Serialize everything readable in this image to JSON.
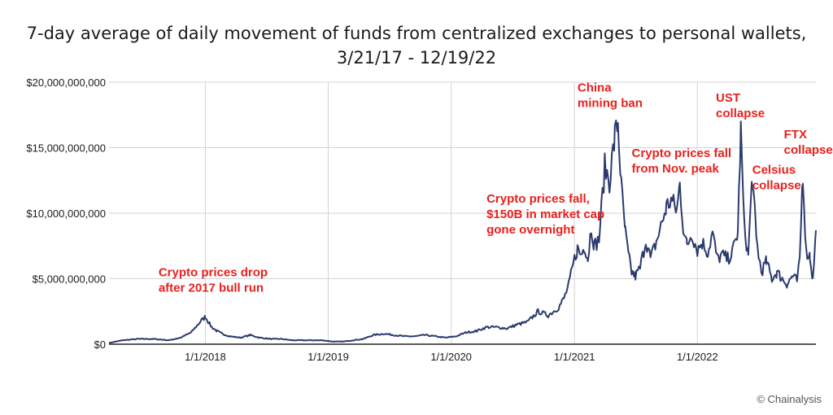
{
  "credit": "© Chainalysis",
  "chart_data": {
    "type": "line",
    "title": "7-day average of daily movement of funds from centralized exchanges to personal wallets, 3/21/17 - 12/19/22",
    "xlabel": "",
    "ylabel": "",
    "xlim": [
      "2017-03-21",
      "2022-12-19"
    ],
    "ylim": [
      0,
      20000000000
    ],
    "yticks": [
      0,
      5000000000,
      10000000000,
      15000000000,
      20000000000
    ],
    "ytick_labels": [
      "$0",
      "$5,000,000,000",
      "$10,000,000,000",
      "$15,000,000,000",
      "$20,000,000,000"
    ],
    "xticks": [
      "2018-01-01",
      "2019-01-01",
      "2020-01-01",
      "2021-01-01",
      "2022-01-01"
    ],
    "xtick_labels": [
      "1/1/2018",
      "1/1/2019",
      "1/1/2020",
      "1/1/2021",
      "1/1/2022"
    ],
    "grid": true,
    "line_color": "#2b3a6e",
    "annotation_color": "#e8201d",
    "series": [
      {
        "x": [
          "2017-03-21",
          "2017-05-01",
          "2017-06-15",
          "2017-08-01",
          "2017-09-15",
          "2017-10-20",
          "2017-11-20",
          "2017-12-10",
          "2017-12-20",
          "2018-01-01",
          "2018-01-10",
          "2018-01-20",
          "2018-02-05",
          "2018-02-20",
          "2018-03-15",
          "2018-04-15",
          "2018-05-15",
          "2018-06-10",
          "2018-07-15",
          "2018-08-15",
          "2018-09-15",
          "2018-10-15",
          "2018-11-15",
          "2018-12-15",
          "2019-01-15",
          "2019-02-15",
          "2019-03-15",
          "2019-04-15",
          "2019-05-15",
          "2019-06-15",
          "2019-07-15",
          "2019-08-15",
          "2019-09-15",
          "2019-10-15",
          "2019-11-15",
          "2019-12-15",
          "2020-01-15",
          "2020-02-15",
          "2020-03-15",
          "2020-04-15",
          "2020-05-15",
          "2020-06-15",
          "2020-07-15",
          "2020-08-15",
          "2020-09-15",
          "2020-10-15",
          "2020-11-15",
          "2020-12-01",
          "2020-12-15",
          "2021-01-01",
          "2021-01-10",
          "2021-01-20",
          "2021-02-01",
          "2021-02-10",
          "2021-02-20",
          "2021-03-01",
          "2021-03-15",
          "2021-04-01",
          "2021-04-15",
          "2021-05-01",
          "2021-05-10",
          "2021-05-20",
          "2021-06-01",
          "2021-06-10",
          "2021-06-20",
          "2021-07-01",
          "2021-07-15",
          "2021-08-01",
          "2021-08-15",
          "2021-09-01",
          "2021-09-15",
          "2021-10-01",
          "2021-10-15",
          "2021-11-01",
          "2021-11-10",
          "2021-11-20",
          "2021-12-01",
          "2021-12-15",
          "2022-01-01",
          "2022-01-15",
          "2022-02-01",
          "2022-02-15",
          "2022-03-01",
          "2022-03-15",
          "2022-04-01",
          "2022-04-15",
          "2022-05-01",
          "2022-05-10",
          "2022-05-20",
          "2022-06-01",
          "2022-06-13",
          "2022-06-25",
          "2022-07-10",
          "2022-07-25",
          "2022-08-10",
          "2022-08-25",
          "2022-09-10",
          "2022-09-25",
          "2022-10-10",
          "2022-10-25",
          "2022-11-01",
          "2022-11-10",
          "2022-11-20",
          "2022-12-01",
          "2022-12-10",
          "2022-12-19"
        ],
        "y": [
          100000000,
          300000000,
          400000000,
          400000000,
          300000000,
          500000000,
          900000000,
          1500000000,
          1800000000,
          2100000000,
          1700000000,
          1300000000,
          1000000000,
          800000000,
          600000000,
          500000000,
          700000000,
          500000000,
          400000000,
          400000000,
          300000000,
          300000000,
          300000000,
          300000000,
          200000000,
          200000000,
          300000000,
          400000000,
          700000000,
          800000000,
          700000000,
          600000000,
          600000000,
          700000000,
          600000000,
          500000000,
          600000000,
          900000000,
          1000000000,
          1300000000,
          1300000000,
          1200000000,
          1500000000,
          1700000000,
          2500000000,
          2200000000,
          2800000000,
          3500000000,
          4500000000,
          6500000000,
          7300000000,
          6800000000,
          7500000000,
          6500000000,
          9000000000,
          7500000000,
          8000000000,
          13500000000,
          12500000000,
          15800000000,
          17000000000,
          12000000000,
          8500000000,
          6800000000,
          5500000000,
          5200000000,
          5800000000,
          8000000000,
          6500000000,
          7800000000,
          9000000000,
          10500000000,
          11000000000,
          10200000000,
          12200000000,
          9000000000,
          7500000000,
          8500000000,
          7200000000,
          7800000000,
          7000000000,
          8500000000,
          6500000000,
          6800000000,
          6500000000,
          7000000000,
          8500000000,
          16200000000,
          9000000000,
          6800000000,
          12800000000,
          8000000000,
          5500000000,
          6300000000,
          5000000000,
          5500000000,
          5000000000,
          4600000000,
          5200000000,
          4800000000,
          6500000000,
          13200000000,
          7000000000,
          6800000000,
          4900000000,
          8700000000
        ]
      }
    ],
    "annotations": [
      {
        "x": "2017-08-15",
        "y": 5200000000,
        "lines": [
          "Crypto prices drop",
          "after 2017 bull run"
        ]
      },
      {
        "x": "2020-04-15",
        "y": 10800000000,
        "lines": [
          "Crypto prices fall,",
          "$150B in market cap",
          "gone overnight"
        ]
      },
      {
        "x": "2021-01-10",
        "y": 19300000000,
        "lines": [
          "China",
          "mining ban"
        ]
      },
      {
        "x": "2021-06-20",
        "y": 14300000000,
        "lines": [
          "Crypto prices fall",
          "from Nov. peak"
        ]
      },
      {
        "x": "2022-02-25",
        "y": 18500000000,
        "lines": [
          "UST",
          "collapse"
        ]
      },
      {
        "x": "2022-06-13",
        "y": 13000000000,
        "lines": [
          "Celsius",
          "collapse"
        ]
      },
      {
        "x": "2022-09-15",
        "y": 15700000000,
        "lines": [
          "FTX",
          "collapse"
        ]
      }
    ]
  }
}
